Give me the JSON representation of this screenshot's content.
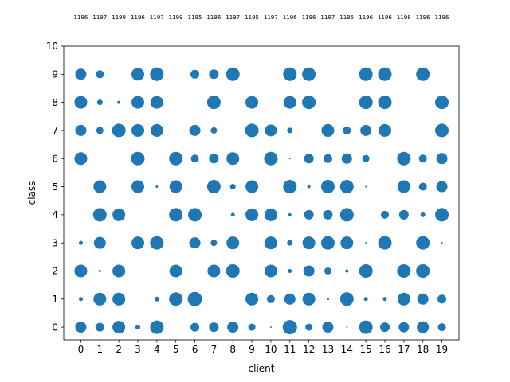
{
  "chart_data": {
    "type": "scatter",
    "xlabel": "client",
    "ylabel": "class",
    "x_ticks": [
      "0",
      "1",
      "2",
      "3",
      "4",
      "5",
      "6",
      "7",
      "8",
      "9",
      "10",
      "11",
      "12",
      "13",
      "14",
      "15",
      "16",
      "17",
      "18",
      "19"
    ],
    "y_ticks": [
      "0",
      "1",
      "2",
      "3",
      "4",
      "5",
      "6",
      "7",
      "8",
      "9",
      "10"
    ],
    "xlim": [
      -0.9,
      19.9
    ],
    "ylim": [
      -0.45,
      10
    ],
    "grid": false,
    "color": "#1f77b4",
    "client_totals": [
      "1196",
      "1197",
      "1198",
      "1196",
      "1197",
      "1199",
      "1195",
      "1196",
      "1197",
      "1195",
      "1197",
      "1196",
      "1196",
      "1197",
      "1195",
      "1196",
      "1196",
      "1198",
      "1196",
      "1196"
    ],
    "marker_size_unit": "relative",
    "points": [
      {
        "client": 0,
        "class": 0,
        "size": 7
      },
      {
        "client": 0,
        "class": 1,
        "size": 2.5
      },
      {
        "client": 0,
        "class": 2,
        "size": 8
      },
      {
        "client": 0,
        "class": 3,
        "size": 2.5
      },
      {
        "client": 0,
        "class": 6,
        "size": 8
      },
      {
        "client": 0,
        "class": 7,
        "size": 7
      },
      {
        "client": 0,
        "class": 8,
        "size": 8
      },
      {
        "client": 0,
        "class": 9,
        "size": 7
      },
      {
        "client": 1,
        "class": 0,
        "size": 5.5
      },
      {
        "client": 1,
        "class": 1,
        "size": 8
      },
      {
        "client": 1,
        "class": 2,
        "size": 1.5
      },
      {
        "client": 1,
        "class": 3,
        "size": 7.5
      },
      {
        "client": 1,
        "class": 4,
        "size": 8.5
      },
      {
        "client": 1,
        "class": 5,
        "size": 8
      },
      {
        "client": 1,
        "class": 7,
        "size": 4.5
      },
      {
        "client": 1,
        "class": 8,
        "size": 3.5
      },
      {
        "client": 1,
        "class": 9,
        "size": 5
      },
      {
        "client": 2,
        "class": 0,
        "size": 8
      },
      {
        "client": 2,
        "class": 1,
        "size": 8
      },
      {
        "client": 2,
        "class": 2,
        "size": 8
      },
      {
        "client": 2,
        "class": 4,
        "size": 8
      },
      {
        "client": 2,
        "class": 7,
        "size": 8.5
      },
      {
        "client": 2,
        "class": 8,
        "size": 2
      },
      {
        "client": 3,
        "class": 0,
        "size": 3
      },
      {
        "client": 3,
        "class": 3,
        "size": 8
      },
      {
        "client": 3,
        "class": 5,
        "size": 8
      },
      {
        "client": 3,
        "class": 6,
        "size": 8.5
      },
      {
        "client": 3,
        "class": 7,
        "size": 8
      },
      {
        "client": 3,
        "class": 8,
        "size": 8
      },
      {
        "client": 3,
        "class": 9,
        "size": 8
      },
      {
        "client": 4,
        "class": 0,
        "size": 8.5
      },
      {
        "client": 4,
        "class": 1,
        "size": 3
      },
      {
        "client": 4,
        "class": 3,
        "size": 8.5
      },
      {
        "client": 4,
        "class": 5,
        "size": 1.5
      },
      {
        "client": 4,
        "class": 7,
        "size": 8
      },
      {
        "client": 4,
        "class": 8,
        "size": 8
      },
      {
        "client": 4,
        "class": 9,
        "size": 8.5
      },
      {
        "client": 5,
        "class": 1,
        "size": 8.5
      },
      {
        "client": 5,
        "class": 2,
        "size": 8
      },
      {
        "client": 5,
        "class": 4,
        "size": 8.5
      },
      {
        "client": 5,
        "class": 5,
        "size": 8
      },
      {
        "client": 5,
        "class": 6,
        "size": 8.5
      },
      {
        "client": 6,
        "class": 0,
        "size": 5.5
      },
      {
        "client": 6,
        "class": 1,
        "size": 9
      },
      {
        "client": 6,
        "class": 3,
        "size": 7
      },
      {
        "client": 6,
        "class": 4,
        "size": 8.5
      },
      {
        "client": 6,
        "class": 6,
        "size": 5
      },
      {
        "client": 6,
        "class": 7,
        "size": 7
      },
      {
        "client": 6,
        "class": 9,
        "size": 5.5
      },
      {
        "client": 7,
        "class": 0,
        "size": 6
      },
      {
        "client": 7,
        "class": 2,
        "size": 8
      },
      {
        "client": 7,
        "class": 3,
        "size": 4
      },
      {
        "client": 7,
        "class": 5,
        "size": 8.5
      },
      {
        "client": 7,
        "class": 6,
        "size": 6
      },
      {
        "client": 7,
        "class": 7,
        "size": 4
      },
      {
        "client": 7,
        "class": 8,
        "size": 8.5
      },
      {
        "client": 7,
        "class": 9,
        "size": 6
      },
      {
        "client": 8,
        "class": 0,
        "size": 7
      },
      {
        "client": 8,
        "class": 2,
        "size": 8.5
      },
      {
        "client": 8,
        "class": 3,
        "size": 8
      },
      {
        "client": 8,
        "class": 4,
        "size": 2.5
      },
      {
        "client": 8,
        "class": 5,
        "size": 3.5
      },
      {
        "client": 8,
        "class": 6,
        "size": 8
      },
      {
        "client": 8,
        "class": 9,
        "size": 8.5
      },
      {
        "client": 9,
        "class": 0,
        "size": 4.5
      },
      {
        "client": 9,
        "class": 1,
        "size": 8
      },
      {
        "client": 9,
        "class": 4,
        "size": 8
      },
      {
        "client": 9,
        "class": 5,
        "size": 8
      },
      {
        "client": 9,
        "class": 7,
        "size": 8.5
      },
      {
        "client": 9,
        "class": 8,
        "size": 8
      },
      {
        "client": 10,
        "class": 0,
        "size": 1
      },
      {
        "client": 10,
        "class": 1,
        "size": 5
      },
      {
        "client": 10,
        "class": 2,
        "size": 8
      },
      {
        "client": 10,
        "class": 3,
        "size": 8
      },
      {
        "client": 10,
        "class": 4,
        "size": 8
      },
      {
        "client": 10,
        "class": 6,
        "size": 8.5
      },
      {
        "client": 10,
        "class": 7,
        "size": 7.5
      },
      {
        "client": 11,
        "class": 0,
        "size": 9
      },
      {
        "client": 11,
        "class": 1,
        "size": 7
      },
      {
        "client": 11,
        "class": 2,
        "size": 2.5
      },
      {
        "client": 11,
        "class": 3,
        "size": 3.5
      },
      {
        "client": 11,
        "class": 4,
        "size": 2
      },
      {
        "client": 11,
        "class": 5,
        "size": 8.5
      },
      {
        "client": 11,
        "class": 6,
        "size": 1
      },
      {
        "client": 11,
        "class": 7,
        "size": 3.5
      },
      {
        "client": 11,
        "class": 8,
        "size": 8
      },
      {
        "client": 11,
        "class": 9,
        "size": 8.5
      },
      {
        "client": 12,
        "class": 0,
        "size": 4.5
      },
      {
        "client": 12,
        "class": 1,
        "size": 8
      },
      {
        "client": 12,
        "class": 2,
        "size": 7
      },
      {
        "client": 12,
        "class": 3,
        "size": 8
      },
      {
        "client": 12,
        "class": 4,
        "size": 6
      },
      {
        "client": 12,
        "class": 5,
        "size": 2
      },
      {
        "client": 12,
        "class": 6,
        "size": 6
      },
      {
        "client": 12,
        "class": 8,
        "size": 8.5
      },
      {
        "client": 12,
        "class": 9,
        "size": 8.5
      },
      {
        "client": 13,
        "class": 0,
        "size": 7
      },
      {
        "client": 13,
        "class": 1,
        "size": 1.5
      },
      {
        "client": 13,
        "class": 2,
        "size": 4.5
      },
      {
        "client": 13,
        "class": 3,
        "size": 8.5
      },
      {
        "client": 13,
        "class": 4,
        "size": 6
      },
      {
        "client": 13,
        "class": 5,
        "size": 8.5
      },
      {
        "client": 13,
        "class": 6,
        "size": 5.5
      },
      {
        "client": 13,
        "class": 7,
        "size": 8
      },
      {
        "client": 14,
        "class": 0,
        "size": 1
      },
      {
        "client": 14,
        "class": 1,
        "size": 8.5
      },
      {
        "client": 14,
        "class": 2,
        "size": 2
      },
      {
        "client": 14,
        "class": 3,
        "size": 8
      },
      {
        "client": 14,
        "class": 4,
        "size": 8.5
      },
      {
        "client": 14,
        "class": 5,
        "size": 8.5
      },
      {
        "client": 14,
        "class": 6,
        "size": 6.5
      },
      {
        "client": 14,
        "class": 7,
        "size": 5
      },
      {
        "client": 15,
        "class": 0,
        "size": 8.5
      },
      {
        "client": 15,
        "class": 1,
        "size": 2.5
      },
      {
        "client": 15,
        "class": 2,
        "size": 8.5
      },
      {
        "client": 15,
        "class": 3,
        "size": 1
      },
      {
        "client": 15,
        "class": 5,
        "size": 1
      },
      {
        "client": 15,
        "class": 6,
        "size": 4.5
      },
      {
        "client": 15,
        "class": 7,
        "size": 7
      },
      {
        "client": 15,
        "class": 8,
        "size": 8.5
      },
      {
        "client": 15,
        "class": 9,
        "size": 8.5
      },
      {
        "client": 16,
        "class": 0,
        "size": 6
      },
      {
        "client": 16,
        "class": 1,
        "size": 2.5
      },
      {
        "client": 16,
        "class": 3,
        "size": 8.5
      },
      {
        "client": 16,
        "class": 4,
        "size": 5
      },
      {
        "client": 16,
        "class": 7,
        "size": 8
      },
      {
        "client": 16,
        "class": 8,
        "size": 8.5
      },
      {
        "client": 16,
        "class": 9,
        "size": 8.5
      },
      {
        "client": 17,
        "class": 0,
        "size": 6.5
      },
      {
        "client": 17,
        "class": 1,
        "size": 8
      },
      {
        "client": 17,
        "class": 2,
        "size": 8.5
      },
      {
        "client": 17,
        "class": 4,
        "size": 6
      },
      {
        "client": 17,
        "class": 5,
        "size": 8
      },
      {
        "client": 17,
        "class": 6,
        "size": 8.5
      },
      {
        "client": 18,
        "class": 0,
        "size": 7.5
      },
      {
        "client": 18,
        "class": 1,
        "size": 7
      },
      {
        "client": 18,
        "class": 2,
        "size": 8.5
      },
      {
        "client": 18,
        "class": 3,
        "size": 8.5
      },
      {
        "client": 18,
        "class": 4,
        "size": 3
      },
      {
        "client": 18,
        "class": 5,
        "size": 5
      },
      {
        "client": 18,
        "class": 6,
        "size": 5
      },
      {
        "client": 18,
        "class": 9,
        "size": 8.5
      },
      {
        "client": 19,
        "class": 0,
        "size": 5
      },
      {
        "client": 19,
        "class": 1,
        "size": 5.5
      },
      {
        "client": 19,
        "class": 3,
        "size": 1
      },
      {
        "client": 19,
        "class": 4,
        "size": 8.5
      },
      {
        "client": 19,
        "class": 5,
        "size": 7
      },
      {
        "client": 19,
        "class": 6,
        "size": 7
      },
      {
        "client": 19,
        "class": 7,
        "size": 8.5
      },
      {
        "client": 19,
        "class": 8,
        "size": 8.5
      }
    ]
  }
}
